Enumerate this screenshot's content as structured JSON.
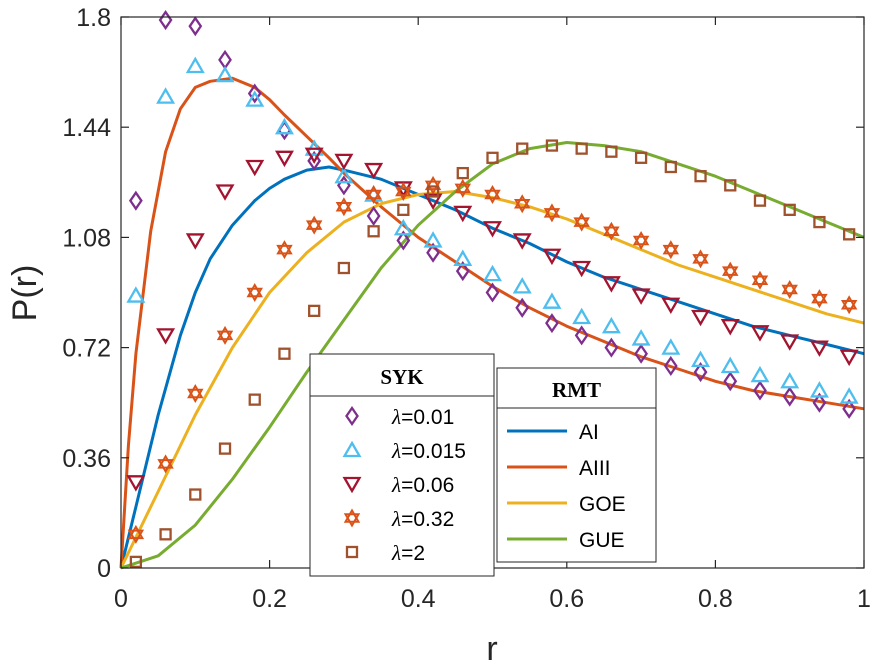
{
  "chart_data": {
    "type": "line",
    "xlabel": "r",
    "ylabel": "P(r)",
    "xlim": [
      0,
      1
    ],
    "ylim": [
      0,
      1.8
    ],
    "xticks": [
      0,
      0.2,
      0.4,
      0.6,
      0.8,
      1
    ],
    "xtick_labels": [
      "0",
      "0.2",
      "0.4",
      "0.6",
      "0.8",
      "1"
    ],
    "yticks": [
      0,
      0.36,
      0.72,
      1.08,
      1.44,
      1.8
    ],
    "ytick_labels": [
      "0",
      "0.36",
      "0.72",
      "1.08",
      "1.44",
      "1.8"
    ],
    "grid": false,
    "legends": [
      {
        "title": "SYK",
        "position": "bottom-center-left",
        "entries": [
          {
            "prefix": "λ",
            "label": "=0.01"
          },
          {
            "prefix": "λ",
            "label": "=0.015"
          },
          {
            "prefix": "λ",
            "label": "=0.06"
          },
          {
            "prefix": "λ",
            "label": "=0.32"
          },
          {
            "prefix": "λ",
            "label": "=2"
          }
        ]
      },
      {
        "title": "RMT",
        "position": "bottom-center",
        "entries": [
          {
            "label": "AI"
          },
          {
            "label": "AIII"
          },
          {
            "label": "GOE"
          },
          {
            "label": "GUE"
          }
        ]
      }
    ],
    "line_series": [
      {
        "name": "AI",
        "color": "#0072BD",
        "x": [
          0,
          0.02,
          0.05,
          0.08,
          0.1,
          0.12,
          0.15,
          0.18,
          0.2,
          0.22,
          0.25,
          0.28,
          0.3,
          0.35,
          0.4,
          0.45,
          0.5,
          0.55,
          0.6,
          0.65,
          0.7,
          0.75,
          0.8,
          0.85,
          0.9,
          0.95,
          1.0
        ],
        "y": [
          0,
          0.2,
          0.5,
          0.76,
          0.9,
          1.01,
          1.12,
          1.2,
          1.24,
          1.27,
          1.3,
          1.31,
          1.3,
          1.27,
          1.22,
          1.17,
          1.11,
          1.06,
          1.0,
          0.95,
          0.91,
          0.87,
          0.83,
          0.79,
          0.76,
          0.73,
          0.7
        ]
      },
      {
        "name": "AIII",
        "color": "#D95319",
        "x": [
          0,
          0.01,
          0.02,
          0.04,
          0.06,
          0.08,
          0.1,
          0.12,
          0.15,
          0.18,
          0.2,
          0.22,
          0.25,
          0.28,
          0.3,
          0.35,
          0.4,
          0.45,
          0.5,
          0.55,
          0.6,
          0.65,
          0.7,
          0.75,
          0.8,
          0.85,
          0.9,
          0.95,
          1.0
        ],
        "y": [
          0,
          0.4,
          0.7,
          1.1,
          1.36,
          1.5,
          1.57,
          1.59,
          1.6,
          1.57,
          1.53,
          1.48,
          1.41,
          1.34,
          1.29,
          1.18,
          1.08,
          1.0,
          0.92,
          0.85,
          0.79,
          0.74,
          0.69,
          0.65,
          0.61,
          0.58,
          0.56,
          0.54,
          0.52
        ]
      },
      {
        "name": "GOE",
        "color": "#EDB120",
        "x": [
          0,
          0.05,
          0.1,
          0.15,
          0.2,
          0.25,
          0.3,
          0.35,
          0.4,
          0.45,
          0.5,
          0.55,
          0.6,
          0.65,
          0.7,
          0.75,
          0.8,
          0.85,
          0.9,
          0.95,
          1.0
        ],
        "y": [
          0,
          0.25,
          0.5,
          0.72,
          0.9,
          1.03,
          1.13,
          1.19,
          1.22,
          1.23,
          1.21,
          1.18,
          1.14,
          1.09,
          1.04,
          0.99,
          0.95,
          0.91,
          0.87,
          0.83,
          0.8
        ]
      },
      {
        "name": "GUE",
        "color": "#77AC30",
        "x": [
          0,
          0.05,
          0.1,
          0.15,
          0.2,
          0.25,
          0.3,
          0.35,
          0.4,
          0.45,
          0.5,
          0.55,
          0.6,
          0.65,
          0.7,
          0.75,
          0.8,
          0.85,
          0.9,
          0.95,
          1.0
        ],
        "y": [
          0,
          0.04,
          0.14,
          0.29,
          0.46,
          0.64,
          0.81,
          0.98,
          1.12,
          1.23,
          1.32,
          1.37,
          1.39,
          1.38,
          1.36,
          1.32,
          1.28,
          1.23,
          1.18,
          1.13,
          1.08
        ]
      }
    ],
    "marker_series": [
      {
        "name": "λ=0.01",
        "marker": "diamond",
        "color": "#7E2F8E",
        "x": [
          0.02,
          0.06,
          0.1,
          0.14,
          0.18,
          0.22,
          0.26,
          0.3,
          0.34,
          0.38,
          0.42,
          0.46,
          0.5,
          0.54,
          0.58,
          0.62,
          0.66,
          0.7,
          0.74,
          0.78,
          0.82,
          0.86,
          0.9,
          0.94,
          0.98
        ],
        "y": [
          1.2,
          1.79,
          1.77,
          1.66,
          1.55,
          1.43,
          1.33,
          1.25,
          1.15,
          1.07,
          1.03,
          0.97,
          0.9,
          0.85,
          0.8,
          0.76,
          0.72,
          0.7,
          0.66,
          0.64,
          0.61,
          0.58,
          0.56,
          0.54,
          0.52
        ]
      },
      {
        "name": "λ=0.015",
        "marker": "triangle-up",
        "color": "#4DBEEE",
        "x": [
          0.02,
          0.06,
          0.1,
          0.14,
          0.18,
          0.22,
          0.26,
          0.3,
          0.34,
          0.38,
          0.42,
          0.46,
          0.5,
          0.54,
          0.58,
          0.62,
          0.66,
          0.7,
          0.74,
          0.78,
          0.82,
          0.86,
          0.9,
          0.94,
          0.98
        ],
        "y": [
          0.89,
          1.54,
          1.64,
          1.61,
          1.53,
          1.44,
          1.37,
          1.28,
          1.22,
          1.11,
          1.07,
          1.01,
          0.96,
          0.92,
          0.87,
          0.82,
          0.79,
          0.75,
          0.72,
          0.68,
          0.66,
          0.63,
          0.61,
          0.58,
          0.56
        ]
      },
      {
        "name": "λ=0.06",
        "marker": "triangle-down",
        "color": "#A2142F",
        "x": [
          0.02,
          0.06,
          0.1,
          0.14,
          0.18,
          0.22,
          0.26,
          0.3,
          0.34,
          0.38,
          0.42,
          0.46,
          0.5,
          0.54,
          0.58,
          0.62,
          0.66,
          0.7,
          0.74,
          0.78,
          0.82,
          0.86,
          0.9,
          0.94,
          0.98
        ],
        "y": [
          0.28,
          0.76,
          1.07,
          1.23,
          1.31,
          1.34,
          1.35,
          1.33,
          1.3,
          1.24,
          1.2,
          1.16,
          1.11,
          1.07,
          1.02,
          0.98,
          0.93,
          0.89,
          0.86,
          0.82,
          0.79,
          0.77,
          0.74,
          0.72,
          0.69
        ]
      },
      {
        "name": "λ=0.32",
        "marker": "hexagram",
        "color": "#D95319",
        "x": [
          0.02,
          0.06,
          0.1,
          0.14,
          0.18,
          0.22,
          0.26,
          0.3,
          0.34,
          0.38,
          0.42,
          0.46,
          0.5,
          0.54,
          0.58,
          0.62,
          0.66,
          0.7,
          0.74,
          0.78,
          0.82,
          0.86,
          0.9,
          0.94,
          0.98
        ],
        "y": [
          0.11,
          0.34,
          0.57,
          0.76,
          0.9,
          1.04,
          1.12,
          1.18,
          1.22,
          1.23,
          1.25,
          1.24,
          1.22,
          1.19,
          1.16,
          1.13,
          1.1,
          1.07,
          1.04,
          1.01,
          0.97,
          0.94,
          0.91,
          0.88,
          0.86
        ]
      },
      {
        "name": "λ=2",
        "marker": "square",
        "color": "#A0522D",
        "x": [
          0.02,
          0.06,
          0.1,
          0.14,
          0.18,
          0.22,
          0.26,
          0.3,
          0.34,
          0.38,
          0.42,
          0.46,
          0.5,
          0.54,
          0.58,
          0.62,
          0.66,
          0.7,
          0.74,
          0.78,
          0.82,
          0.86,
          0.9,
          0.94,
          0.98
        ],
        "y": [
          0.02,
          0.11,
          0.24,
          0.39,
          0.55,
          0.7,
          0.84,
          0.98,
          1.1,
          1.17,
          1.23,
          1.29,
          1.34,
          1.37,
          1.38,
          1.37,
          1.36,
          1.34,
          1.31,
          1.28,
          1.25,
          1.2,
          1.17,
          1.13,
          1.09
        ]
      }
    ]
  }
}
